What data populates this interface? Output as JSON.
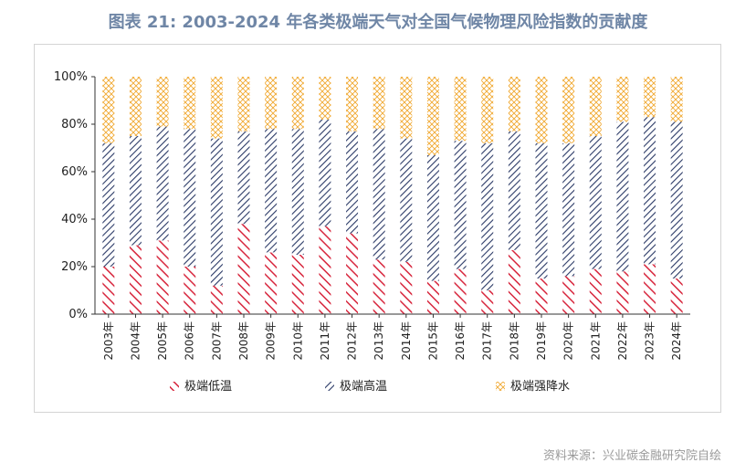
{
  "title": "图表 21: 2003-2024 年各类极端天气对全国气候物理风险指数的贡献度",
  "source": "资料来源：兴业碳金融研究院自绘",
  "colors": {
    "low": "#d7263d",
    "high": "#2b3a67",
    "rain": "#f0a830"
  },
  "chart_data": {
    "type": "bar",
    "stacked": true,
    "categories": [
      "2003年",
      "2004年",
      "2005年",
      "2006年",
      "2007年",
      "2008年",
      "2009年",
      "2010年",
      "2011年",
      "2012年",
      "2013年",
      "2014年",
      "2015年",
      "2016年",
      "2017年",
      "2018年",
      "2019年",
      "2020年",
      "2021年",
      "2022年",
      "2023年",
      "2024年"
    ],
    "series": [
      {
        "name": "极端低温",
        "values": [
          20,
          29,
          31,
          20,
          12,
          38,
          26,
          25,
          37,
          34,
          23,
          22,
          14,
          19,
          10,
          27,
          15,
          16,
          19,
          18,
          21,
          15
        ]
      },
      {
        "name": "极端高温",
        "values": [
          52,
          46,
          48,
          58,
          62,
          39,
          52,
          53,
          45,
          43,
          55,
          52,
          53,
          54,
          62,
          50,
          57,
          56,
          56,
          63,
          62,
          66
        ]
      },
      {
        "name": "极端强降水",
        "values": [
          28,
          25,
          21,
          22,
          26,
          23,
          22,
          22,
          18,
          23,
          22,
          26,
          33,
          27,
          28,
          23,
          28,
          28,
          25,
          19,
          17,
          19
        ]
      }
    ],
    "ylim": [
      0,
      100
    ],
    "yticks": [
      "0%",
      "20%",
      "40%",
      "60%",
      "80%",
      "100%"
    ],
    "legend_position": "bottom"
  }
}
